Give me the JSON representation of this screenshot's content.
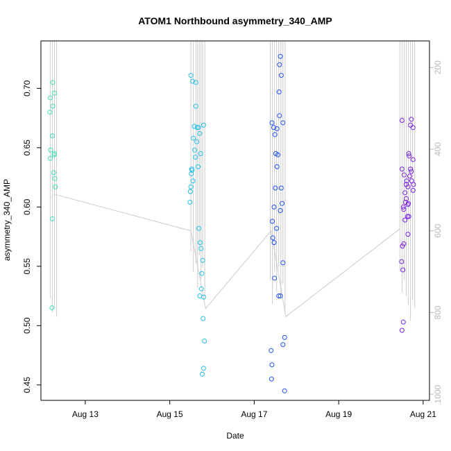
{
  "chart_data": {
    "type": "scatter",
    "title": "ATOM1 Northbound asymmetry_340_AMP",
    "xlabel": "Date",
    "ylabel": "asymmetry_340_AMP",
    "x_ticks": [
      "Aug 13",
      "Aug 15",
      "Aug 17",
      "Aug 19",
      "Aug 21"
    ],
    "x_tick_values": [
      13,
      15,
      17,
      19,
      21
    ],
    "xlim": [
      11.95,
      21.15
    ],
    "ylim": [
      0.437,
      0.74
    ],
    "y_ticks": [
      0.45,
      0.5,
      0.55,
      0.6,
      0.65,
      0.7
    ],
    "y_tick_labels": [
      "0.45",
      "0.50",
      "0.55",
      "0.60",
      "0.65",
      "0.70"
    ],
    "y2lim": [
      1015,
      135
    ],
    "y2_ticks": [
      200,
      400,
      600,
      800,
      1000
    ],
    "y2_tick_labels": [
      "200",
      "400",
      "600",
      "800",
      "1000"
    ],
    "secondary_color": "#cccccc",
    "secondary_line": [
      {
        "x": 12.25,
        "y": 510
      },
      {
        "x": 15.5,
        "y": 600
      },
      {
        "x": 15.85,
        "y": 790
      },
      {
        "x": 17.4,
        "y": 600
      },
      {
        "x": 17.75,
        "y": 810
      },
      {
        "x": 20.45,
        "y": 595
      }
    ],
    "secondary_spikes": [
      {
        "x": 12.17,
        "y0": 135,
        "y1": 765
      },
      {
        "x": 12.22,
        "y0": 135,
        "y1": 800
      },
      {
        "x": 12.27,
        "y0": 135,
        "y1": 790
      },
      {
        "x": 12.32,
        "y0": 135,
        "y1": 810
      },
      {
        "x": 15.5,
        "y0": 135,
        "y1": 650
      },
      {
        "x": 15.56,
        "y0": 135,
        "y1": 700
      },
      {
        "x": 15.62,
        "y0": 135,
        "y1": 680
      },
      {
        "x": 15.66,
        "y0": 135,
        "y1": 740
      },
      {
        "x": 15.7,
        "y0": 135,
        "y1": 660
      },
      {
        "x": 15.74,
        "y0": 135,
        "y1": 720
      },
      {
        "x": 15.78,
        "y0": 135,
        "y1": 690
      },
      {
        "x": 15.83,
        "y0": 135,
        "y1": 760
      },
      {
        "x": 17.38,
        "y0": 135,
        "y1": 720
      },
      {
        "x": 17.43,
        "y0": 135,
        "y1": 780
      },
      {
        "x": 17.48,
        "y0": 135,
        "y1": 700
      },
      {
        "x": 17.53,
        "y0": 135,
        "y1": 750
      },
      {
        "x": 17.58,
        "y0": 135,
        "y1": 690
      },
      {
        "x": 17.63,
        "y0": 135,
        "y1": 760
      },
      {
        "x": 17.68,
        "y0": 135,
        "y1": 730
      },
      {
        "x": 17.73,
        "y0": 135,
        "y1": 800
      },
      {
        "x": 20.45,
        "y0": 135,
        "y1": 700
      },
      {
        "x": 20.5,
        "y0": 135,
        "y1": 750
      },
      {
        "x": 20.55,
        "y0": 135,
        "y1": 720
      },
      {
        "x": 20.6,
        "y0": 135,
        "y1": 760
      },
      {
        "x": 20.65,
        "y0": 135,
        "y1": 780
      },
      {
        "x": 20.7,
        "y0": 135,
        "y1": 820
      },
      {
        "x": 20.75,
        "y0": 135,
        "y1": 770
      },
      {
        "x": 20.8,
        "y0": 135,
        "y1": 790
      }
    ],
    "point_groups": [
      {
        "color": "#40e0b8",
        "points": [
          {
            "x": 12.17,
            "y": 0.692
          },
          {
            "x": 12.16,
            "y": 0.68
          },
          {
            "x": 12.18,
            "y": 0.648
          },
          {
            "x": 12.17,
            "y": 0.641
          },
          {
            "x": 12.23,
            "y": 0.705
          },
          {
            "x": 12.23,
            "y": 0.685
          },
          {
            "x": 12.22,
            "y": 0.66
          },
          {
            "x": 12.27,
            "y": 0.696
          },
          {
            "x": 12.27,
            "y": 0.645
          },
          {
            "x": 12.26,
            "y": 0.644
          },
          {
            "x": 12.25,
            "y": 0.629
          },
          {
            "x": 12.28,
            "y": 0.624
          },
          {
            "x": 12.29,
            "y": 0.617
          },
          {
            "x": 12.22,
            "y": 0.59
          },
          {
            "x": 12.21,
            "y": 0.515
          }
        ]
      },
      {
        "color": "#20c0e8",
        "points": [
          {
            "x": 15.5,
            "y": 0.711
          },
          {
            "x": 15.54,
            "y": 0.706
          },
          {
            "x": 15.62,
            "y": 0.705
          },
          {
            "x": 15.62,
            "y": 0.685
          },
          {
            "x": 15.58,
            "y": 0.668
          },
          {
            "x": 15.65,
            "y": 0.667
          },
          {
            "x": 15.68,
            "y": 0.667
          },
          {
            "x": 15.8,
            "y": 0.669
          },
          {
            "x": 15.71,
            "y": 0.662
          },
          {
            "x": 15.56,
            "y": 0.658
          },
          {
            "x": 15.64,
            "y": 0.655
          },
          {
            "x": 15.59,
            "y": 0.648
          },
          {
            "x": 15.73,
            "y": 0.645
          },
          {
            "x": 15.61,
            "y": 0.642
          },
          {
            "x": 15.67,
            "y": 0.634
          },
          {
            "x": 15.52,
            "y": 0.632
          },
          {
            "x": 15.53,
            "y": 0.631
          },
          {
            "x": 15.51,
            "y": 0.628
          },
          {
            "x": 15.55,
            "y": 0.622
          },
          {
            "x": 15.5,
            "y": 0.617
          },
          {
            "x": 15.49,
            "y": 0.613
          },
          {
            "x": 15.48,
            "y": 0.604
          },
          {
            "x": 15.69,
            "y": 0.582
          },
          {
            "x": 15.72,
            "y": 0.57
          },
          {
            "x": 15.74,
            "y": 0.565
          },
          {
            "x": 15.78,
            "y": 0.555
          },
          {
            "x": 15.76,
            "y": 0.544
          },
          {
            "x": 15.75,
            "y": 0.531
          },
          {
            "x": 15.71,
            "y": 0.525
          },
          {
            "x": 15.8,
            "y": 0.524
          },
          {
            "x": 15.79,
            "y": 0.506
          },
          {
            "x": 15.82,
            "y": 0.487
          },
          {
            "x": 15.8,
            "y": 0.464
          },
          {
            "x": 15.77,
            "y": 0.459
          }
        ]
      },
      {
        "color": "#2050f0",
        "points": [
          {
            "x": 17.62,
            "y": 0.727
          },
          {
            "x": 17.6,
            "y": 0.72
          },
          {
            "x": 17.64,
            "y": 0.711
          },
          {
            "x": 17.59,
            "y": 0.697
          },
          {
            "x": 17.6,
            "y": 0.677
          },
          {
            "x": 17.42,
            "y": 0.671
          },
          {
            "x": 17.68,
            "y": 0.671
          },
          {
            "x": 17.46,
            "y": 0.667
          },
          {
            "x": 17.54,
            "y": 0.666
          },
          {
            "x": 17.49,
            "y": 0.661
          },
          {
            "x": 17.51,
            "y": 0.645
          },
          {
            "x": 17.56,
            "y": 0.644
          },
          {
            "x": 17.54,
            "y": 0.634
          },
          {
            "x": 17.5,
            "y": 0.616
          },
          {
            "x": 17.64,
            "y": 0.616
          },
          {
            "x": 17.66,
            "y": 0.603
          },
          {
            "x": 17.47,
            "y": 0.6
          },
          {
            "x": 17.62,
            "y": 0.597
          },
          {
            "x": 17.43,
            "y": 0.588
          },
          {
            "x": 17.53,
            "y": 0.582
          },
          {
            "x": 17.44,
            "y": 0.574
          },
          {
            "x": 17.47,
            "y": 0.57
          },
          {
            "x": 17.68,
            "y": 0.553
          },
          {
            "x": 17.48,
            "y": 0.54
          },
          {
            "x": 17.58,
            "y": 0.525
          },
          {
            "x": 17.62,
            "y": 0.525
          },
          {
            "x": 17.72,
            "y": 0.49
          },
          {
            "x": 17.4,
            "y": 0.479
          },
          {
            "x": 17.68,
            "y": 0.484
          },
          {
            "x": 17.42,
            "y": 0.467
          },
          {
            "x": 17.41,
            "y": 0.455
          },
          {
            "x": 17.72,
            "y": 0.445
          }
        ]
      },
      {
        "color": "#7a20e8",
        "points": [
          {
            "x": 20.5,
            "y": 0.673
          },
          {
            "x": 20.72,
            "y": 0.674
          },
          {
            "x": 20.7,
            "y": 0.669
          },
          {
            "x": 20.76,
            "y": 0.667
          },
          {
            "x": 20.66,
            "y": 0.645
          },
          {
            "x": 20.67,
            "y": 0.643
          },
          {
            "x": 20.76,
            "y": 0.64
          },
          {
            "x": 20.7,
            "y": 0.632
          },
          {
            "x": 20.5,
            "y": 0.632
          },
          {
            "x": 20.72,
            "y": 0.63
          },
          {
            "x": 20.55,
            "y": 0.627
          },
          {
            "x": 20.68,
            "y": 0.626
          },
          {
            "x": 20.61,
            "y": 0.622
          },
          {
            "x": 20.73,
            "y": 0.622
          },
          {
            "x": 20.6,
            "y": 0.619
          },
          {
            "x": 20.77,
            "y": 0.619
          },
          {
            "x": 20.64,
            "y": 0.617
          },
          {
            "x": 20.57,
            "y": 0.612
          },
          {
            "x": 20.76,
            "y": 0.614
          },
          {
            "x": 20.6,
            "y": 0.607
          },
          {
            "x": 20.58,
            "y": 0.604
          },
          {
            "x": 20.65,
            "y": 0.603
          },
          {
            "x": 20.64,
            "y": 0.602
          },
          {
            "x": 20.53,
            "y": 0.6
          },
          {
            "x": 20.54,
            "y": 0.598
          },
          {
            "x": 20.63,
            "y": 0.592
          },
          {
            "x": 20.66,
            "y": 0.592
          },
          {
            "x": 20.57,
            "y": 0.589
          },
          {
            "x": 20.64,
            "y": 0.577
          },
          {
            "x": 20.54,
            "y": 0.569
          },
          {
            "x": 20.51,
            "y": 0.567
          },
          {
            "x": 20.49,
            "y": 0.554
          },
          {
            "x": 20.52,
            "y": 0.547
          },
          {
            "x": 20.53,
            "y": 0.503
          },
          {
            "x": 20.5,
            "y": 0.496
          }
        ]
      }
    ]
  }
}
